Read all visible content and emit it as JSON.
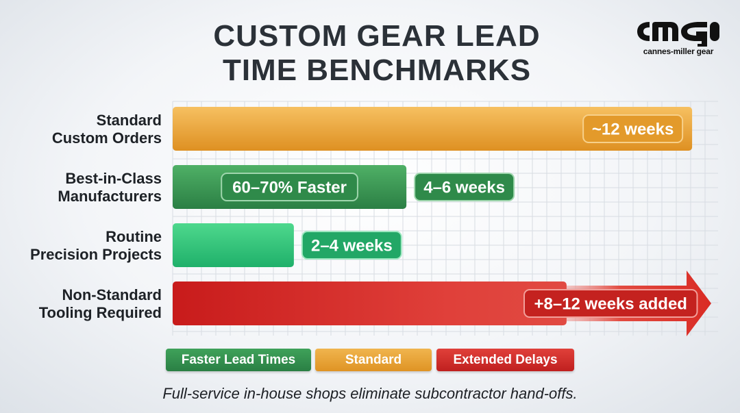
{
  "title_lines": [
    "CUSTOM GEAR LEAD",
    "TIME BENCHMARKS"
  ],
  "logo": {
    "mark": "cmg",
    "text": "cannes-miller gear"
  },
  "chart_data": {
    "type": "bar",
    "orientation": "horizontal",
    "xlim": [
      0,
      12.6
    ],
    "categories": [
      [
        "Standard",
        "Custom Orders"
      ],
      [
        "Best-in-Class",
        "Manufacturers"
      ],
      [
        "Routine",
        "Precision Projects"
      ],
      [
        "Non-Standard",
        "Tooling Required"
      ]
    ],
    "bars": [
      {
        "value": 12,
        "color": "orange",
        "label": "~12 weeks",
        "label_inside": true
      },
      {
        "value": 5.4,
        "color": "green",
        "label": "4–6 weeks",
        "badge": "60–70% Faster"
      },
      {
        "value": 2.8,
        "color": "teal",
        "label": "2–4 weeks"
      },
      {
        "value": 9.1,
        "color": "red",
        "label": "+8–12 weeks added",
        "arrow_to": 12.6
      }
    ],
    "grid": true
  },
  "legend": [
    {
      "label": "Faster Lead Times",
      "color": "#2f8a4a"
    },
    {
      "label": "Standard",
      "color": "#e59d2e"
    },
    {
      "label": "Extended Delays",
      "color": "#cf2a27"
    }
  ],
  "footnote": "Full-service in-house shops eliminate subcontractor hand-offs."
}
